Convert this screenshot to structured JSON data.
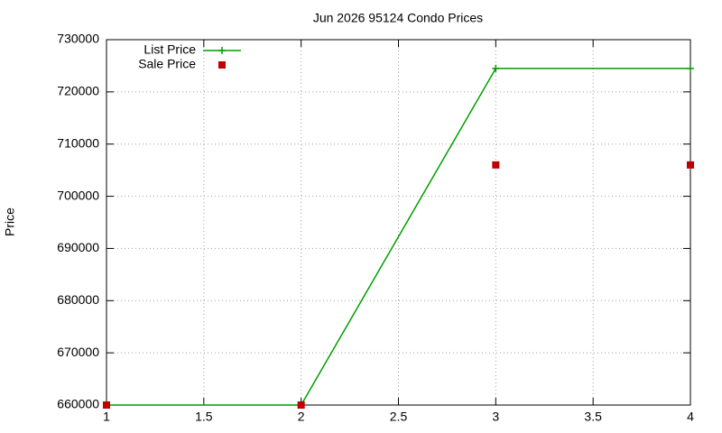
{
  "chart_data": {
    "type": "line",
    "title": "Jun 2026 95124 Condo Prices",
    "y_label": "Price",
    "x": [
      1,
      2,
      3,
      4
    ],
    "series": [
      {
        "name": "List Price",
        "color": "#009e00",
        "marker": "plus",
        "line": true,
        "values": [
          660000,
          660000,
          724500,
          724500
        ]
      },
      {
        "name": "Sale Price",
        "color": "#c00000",
        "marker": "square",
        "line": false,
        "values": [
          660000,
          660000,
          706000,
          706000
        ]
      }
    ],
    "xlim": [
      1,
      4
    ],
    "xticks": [
      1,
      1.5,
      2,
      2.5,
      3,
      3.5,
      4
    ],
    "ylim": [
      660000,
      730000
    ],
    "yticks": [
      660000,
      670000,
      680000,
      690000,
      700000,
      710000,
      720000,
      730000
    ],
    "grid": true,
    "legend": "top-left"
  }
}
